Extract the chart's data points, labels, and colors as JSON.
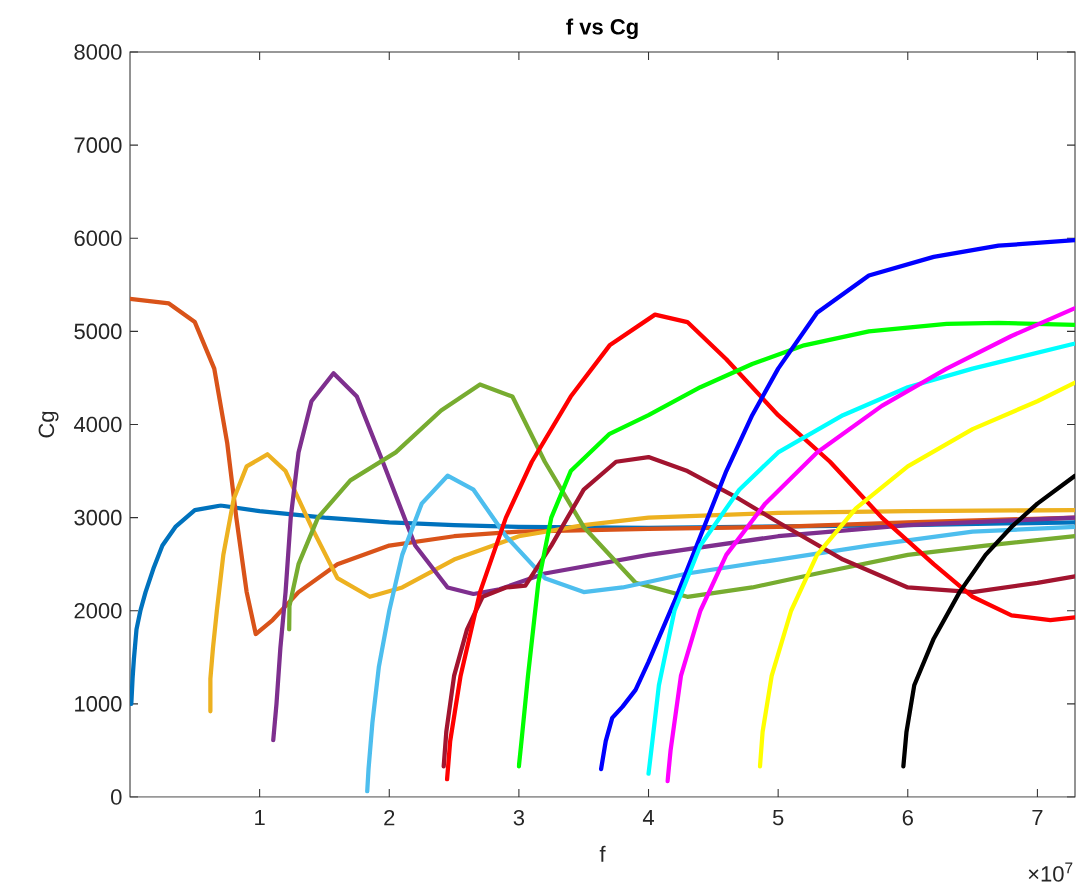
{
  "chart_data": {
    "type": "line",
    "title": "f vs Cg",
    "xlabel": "f",
    "ylabel": "Cg",
    "annotations": [
      "×10$^{7}$"
    ],
    "xlim": [
      0,
      7.29
    ],
    "ylim": [
      0,
      8000
    ],
    "xticks": [
      1,
      2,
      3,
      4,
      5,
      6,
      7
    ],
    "yticks": [
      0,
      1000,
      2000,
      3000,
      4000,
      5000,
      6000,
      7000,
      8000
    ],
    "series": [
      {
        "color": "#0072bd",
        "x": [
          0.01,
          0.02,
          0.03,
          0.05,
          0.08,
          0.12,
          0.18,
          0.25,
          0.35,
          0.5,
          0.7,
          1.0,
          1.5,
          2.0,
          2.5,
          3.0,
          4.0,
          5.0,
          6.0,
          7.29
        ],
        "values": [
          1000,
          1280,
          1480,
          1800,
          2000,
          2200,
          2450,
          2700,
          2900,
          3080,
          3130,
          3070,
          3000,
          2950,
          2920,
          2900,
          2890,
          null,
          2920,
          2950
        ]
      },
      {
        "color": "#d95319",
        "x": [
          0,
          0.3,
          0.5,
          0.65,
          0.75,
          0.82,
          0.9,
          0.97,
          1.1,
          1.3,
          1.6,
          2.0,
          2.5,
          3.0,
          4.0,
          5.0,
          6.0,
          7.29
        ],
        "values": [
          5350,
          5300,
          5100,
          4600,
          3800,
          3000,
          2200,
          1750,
          1900,
          2200,
          2500,
          2700,
          2800,
          2850,
          2880,
          2900,
          2950,
          3000
        ]
      },
      {
        "color": "#edb120",
        "x": [
          0.62,
          0.62,
          0.64,
          0.67,
          0.72,
          0.8,
          0.9,
          1.06,
          1.2,
          1.4,
          1.6,
          1.85,
          2.1,
          2.5,
          3.0,
          3.5,
          4.0,
          5.0,
          6.0,
          7.29
        ],
        "values": [
          920,
          1270,
          1600,
          2000,
          2600,
          3200,
          3550,
          3680,
          3500,
          2900,
          2350,
          2150,
          2250,
          2550,
          2800,
          2920,
          3000,
          3050,
          3070,
          3080
        ]
      },
      {
        "color": "#7e2f8e",
        "x": [
          1.105,
          1.13,
          1.16,
          1.2,
          1.24,
          1.3,
          1.4,
          1.57,
          1.75,
          1.95,
          2.2,
          2.45,
          2.65,
          2.85,
          3.2,
          4.0,
          5.0,
          6.0,
          7.29
        ],
        "values": [
          610,
          1000,
          1600,
          2200,
          3000,
          3700,
          4250,
          4550,
          4300,
          3600,
          2700,
          2250,
          2180,
          2230,
          2400,
          2600,
          2800,
          2920,
          3000
        ]
      },
      {
        "color": "#77ac30",
        "x": [
          1.228,
          1.23,
          1.3,
          1.45,
          1.7,
          2.05,
          2.4,
          2.7,
          2.95,
          3.2,
          3.5,
          3.9,
          4.3,
          4.8,
          5.3,
          6.0,
          6.6,
          7.29
        ],
        "values": [
          1800,
          2050,
          2500,
          3000,
          3400,
          3700,
          4150,
          4430,
          4300,
          3600,
          2900,
          2300,
          2150,
          2250,
          2400,
          2600,
          2700,
          2800
        ]
      },
      {
        "color": "#4dbeee",
        "x": [
          1.83,
          1.84,
          1.87,
          1.92,
          2.0,
          2.1,
          2.25,
          2.45,
          2.65,
          2.9,
          3.2,
          3.5,
          3.8,
          4.3,
          5.0,
          5.7,
          6.5,
          7.29
        ],
        "values": [
          60,
          300,
          800,
          1400,
          2000,
          2600,
          3150,
          3450,
          3300,
          2800,
          2350,
          2200,
          2250,
          2400,
          2550,
          2700,
          2850,
          2900
        ]
      },
      {
        "color": "#a2142f",
        "x": [
          2.42,
          2.44,
          2.5,
          2.6,
          2.72,
          2.9,
          3.05,
          3.25,
          3.5,
          3.75,
          4.0,
          4.3,
          4.7,
          5.0,
          5.5,
          6.0,
          6.5,
          7.0,
          7.29
        ],
        "values": [
          330,
          700,
          1300,
          1800,
          2150,
          2250,
          2270,
          2700,
          3300,
          3600,
          3650,
          3500,
          3200,
          2950,
          2550,
          2250,
          2200,
          2300,
          2370
        ]
      },
      {
        "color": "#ff0000",
        "x": [
          2.446,
          2.47,
          2.55,
          2.7,
          2.9,
          3.1,
          3.4,
          3.7,
          4.05,
          4.3,
          4.6,
          5.0,
          5.4,
          5.8,
          6.2,
          6.5,
          6.8,
          7.1,
          7.29
        ],
        "values": [
          190,
          600,
          1300,
          2200,
          3000,
          3600,
          4300,
          4850,
          5180,
          5100,
          4700,
          4100,
          3600,
          3000,
          2500,
          2150,
          1950,
          1900,
          1930
        ]
      },
      {
        "color": "#00ff00",
        "x": [
          3.0,
          3.02,
          3.07,
          3.15,
          3.25,
          3.4,
          3.7,
          4.0,
          4.4,
          4.8,
          5.2,
          5.7,
          6.3,
          6.7,
          7.29
        ],
        "values": [
          330,
          600,
          1300,
          2300,
          3000,
          3500,
          3900,
          4100,
          4400,
          4650,
          4850,
          5000,
          5080,
          5090,
          5070
        ]
      },
      {
        "color": "#0000ff",
        "x": [
          3.634,
          3.67,
          3.72,
          3.8,
          3.9,
          4.0,
          4.2,
          4.4,
          4.6,
          4.8,
          5.0,
          5.3,
          5.7,
          6.2,
          6.7,
          7.29
        ],
        "values": [
          300,
          600,
          850,
          970,
          1150,
          1450,
          2100,
          2800,
          3500,
          4100,
          4600,
          5200,
          5600,
          5800,
          5920,
          5980
        ]
      },
      {
        "color": "#00ffff",
        "x": [
          4.0,
          4.03,
          4.08,
          4.2,
          4.4,
          4.7,
          5.0,
          5.5,
          6.0,
          6.5,
          7.29
        ],
        "values": [
          250,
          600,
          1200,
          2000,
          2700,
          3300,
          3700,
          4100,
          4400,
          4600,
          4870
        ]
      },
      {
        "color": "#ff00ff",
        "x": [
          4.147,
          4.17,
          4.25,
          4.4,
          4.6,
          4.9,
          5.3,
          5.8,
          6.3,
          6.8,
          7.29
        ],
        "values": [
          170,
          500,
          1300,
          2000,
          2600,
          3150,
          3700,
          4200,
          4600,
          4950,
          5250
        ]
      },
      {
        "color": "#ffff00",
        "x": [
          4.86,
          4.88,
          4.95,
          5.1,
          5.3,
          5.6,
          6.0,
          6.5,
          7.0,
          7.29
        ],
        "values": [
          330,
          700,
          1300,
          2000,
          2600,
          3100,
          3550,
          3950,
          4250,
          4450
        ]
      },
      {
        "color": "#000000",
        "x": [
          5.966,
          5.99,
          6.05,
          6.2,
          6.4,
          6.6,
          6.8,
          7.0,
          7.29
        ],
        "values": [
          330,
          700,
          1200,
          1700,
          2200,
          2600,
          2900,
          3150,
          3450
        ]
      }
    ]
  }
}
